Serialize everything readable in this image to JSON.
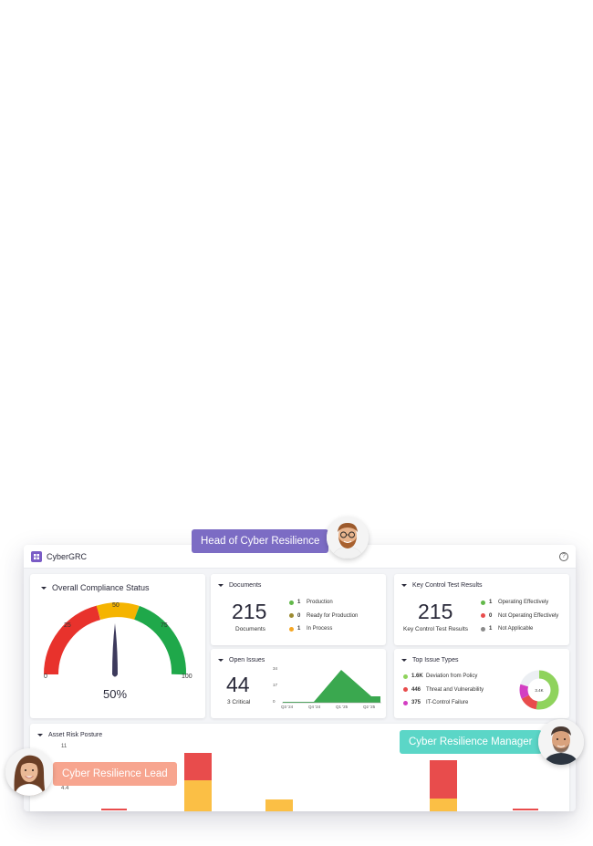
{
  "app": {
    "name": "CyberGRC"
  },
  "badges": {
    "head": "Head of Cyber Resilience",
    "manager": "Cyber Resilience Manager",
    "lead": "Cyber Resilience Lead"
  },
  "colors": {
    "accent": "#7a5cc6",
    "green": "#62b84a",
    "orange": "#f5a623",
    "red": "#e84c4c",
    "magenta": "#d33ec2",
    "gray": "#8a8a8a"
  },
  "compliance": {
    "title": "Overall Compliance Status",
    "value": 50,
    "value_label": "50%",
    "ticks": [
      "0",
      "25",
      "50",
      "75",
      "100"
    ]
  },
  "documents": {
    "title": "Documents",
    "total": "215",
    "caption": "Documents",
    "items": [
      {
        "count": "1",
        "label": "Production",
        "color": "#62b84a"
      },
      {
        "count": "0",
        "label": "Ready for Production",
        "color": "#9c8a30"
      },
      {
        "count": "1",
        "label": "In Process",
        "color": "#f5a623"
      }
    ]
  },
  "key_controls": {
    "title": "Key Control Test Results",
    "total": "215",
    "caption": "Key Control Test Results",
    "items": [
      {
        "count": "1",
        "label": "Operating Effectively",
        "color": "#62b84a"
      },
      {
        "count": "0",
        "label": "Not Operating Effectively",
        "color": "#e84c4c"
      },
      {
        "count": "1",
        "label": "Not Applicable",
        "color": "#8a8a8a"
      }
    ]
  },
  "open_issues": {
    "title": "Open Issues",
    "total": "44",
    "caption": "3 Critical",
    "chart_data": {
      "type": "area",
      "categories": [
        "Q3 '24",
        "Q4 '24",
        "Q1 '25",
        "Q2 '25"
      ],
      "y_ticks": [
        "34",
        "17",
        "0"
      ],
      "ylim": [
        0,
        34
      ]
    }
  },
  "top_issues": {
    "title": "Top Issue Types",
    "center_label": "3.4K",
    "items": [
      {
        "count": "1.6K",
        "label": "Deviation from Policy",
        "color": "#8fd35c"
      },
      {
        "count": "446",
        "label": "Threat and Vulnerability",
        "color": "#e84c4c"
      },
      {
        "count": "375",
        "label": "IT-Control Failure",
        "color": "#d33ec2"
      }
    ]
  },
  "asset_risk": {
    "title": "Asset Risk Posture",
    "y_ticks": [
      "11",
      "4.4"
    ]
  }
}
